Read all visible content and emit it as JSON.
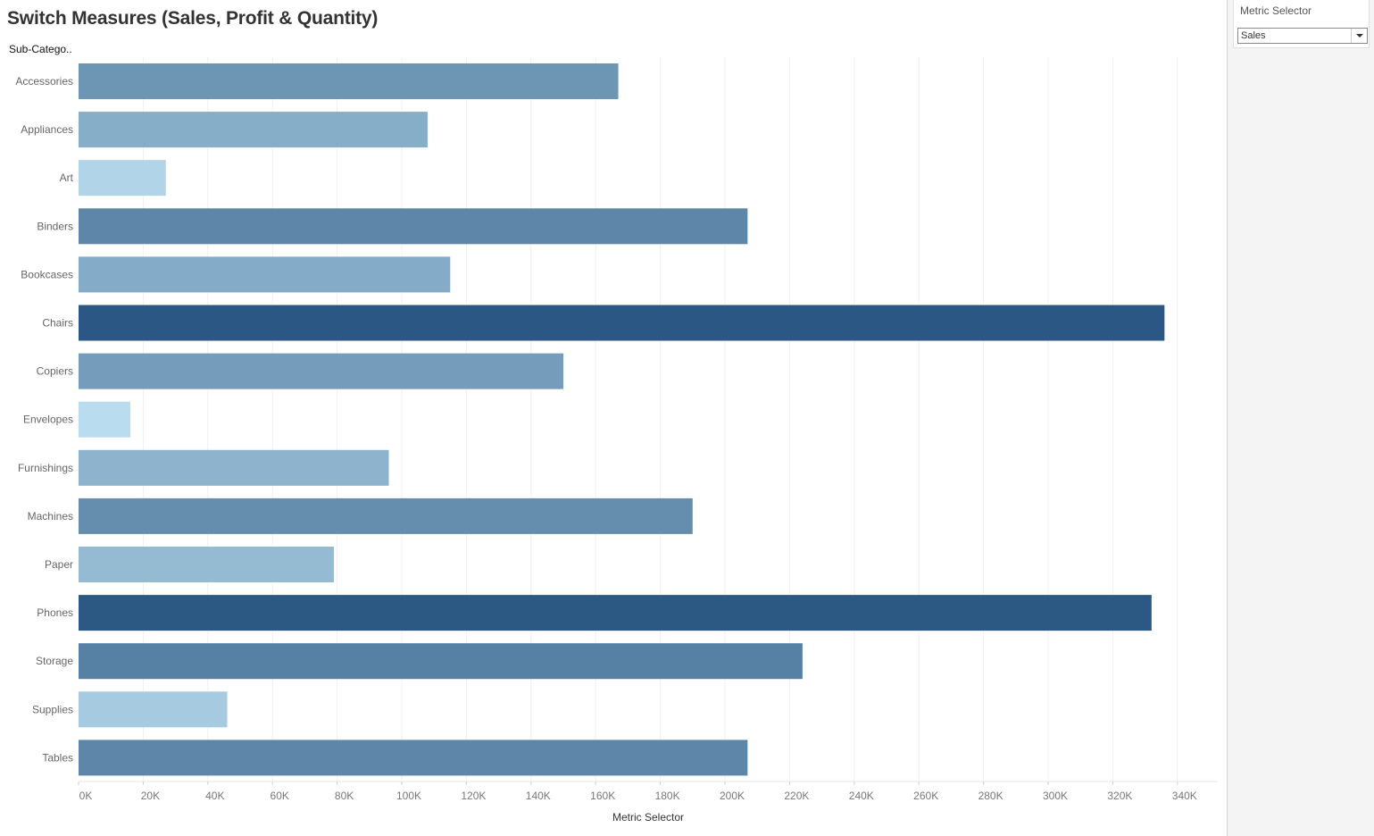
{
  "title": "Switch Measures (Sales, Profit & Quantity)",
  "filter": {
    "title": "Metric Selector",
    "selected": "Sales"
  },
  "chart_data": {
    "type": "bar",
    "orientation": "horizontal",
    "row_header": "Sub-Catego..",
    "xlabel": "Metric Selector",
    "xlim": [
      0,
      352000
    ],
    "grid": true,
    "x_ticks": [
      "0K",
      "20K",
      "40K",
      "60K",
      "80K",
      "100K",
      "120K",
      "140K",
      "160K",
      "180K",
      "200K",
      "220K",
      "240K",
      "260K",
      "280K",
      "300K",
      "320K",
      "340K"
    ],
    "categories": [
      "Accessories",
      "Appliances",
      "Art",
      "Binders",
      "Bookcases",
      "Chairs",
      "Copiers",
      "Envelopes",
      "Furnishings",
      "Machines",
      "Paper",
      "Phones",
      "Storage",
      "Supplies",
      "Tables"
    ],
    "values": [
      167000,
      108000,
      27000,
      207000,
      115000,
      336000,
      150000,
      16000,
      96000,
      190000,
      79000,
      332000,
      224000,
      46000,
      207000
    ],
    "color_scale": [
      "#b9dcee",
      "#2a5783"
    ]
  }
}
